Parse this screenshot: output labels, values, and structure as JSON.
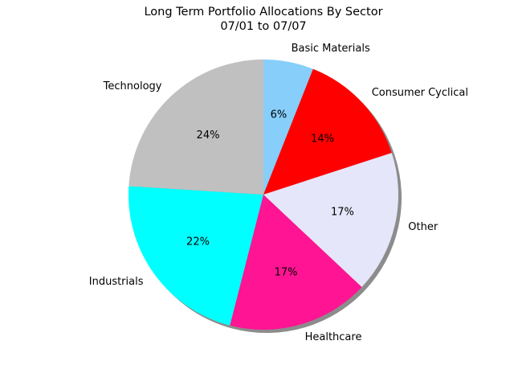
{
  "chart_data": {
    "type": "pie",
    "title": "Long Term Portfolio Allocations By Sector",
    "subtitle": "07/01 to 07/07",
    "start_angle_deg": 90,
    "direction": "clockwise",
    "shadow": true,
    "slices": [
      {
        "label": "Basic Materials",
        "value": 6,
        "pct_label": "6%",
        "color": "#87cefa"
      },
      {
        "label": "Consumer Cyclical",
        "value": 14,
        "pct_label": "14%",
        "color": "#ff0000"
      },
      {
        "label": "Other",
        "value": 17,
        "pct_label": "17%",
        "color": "#e6e6fa"
      },
      {
        "label": "Healthcare",
        "value": 17,
        "pct_label": "17%",
        "color": "#ff1493"
      },
      {
        "label": "Industrials",
        "value": 22,
        "pct_label": "22%",
        "color": "#00ffff"
      },
      {
        "label": "Technology",
        "value": 24,
        "pct_label": "24%",
        "color": "#c0c0c0"
      }
    ]
  }
}
